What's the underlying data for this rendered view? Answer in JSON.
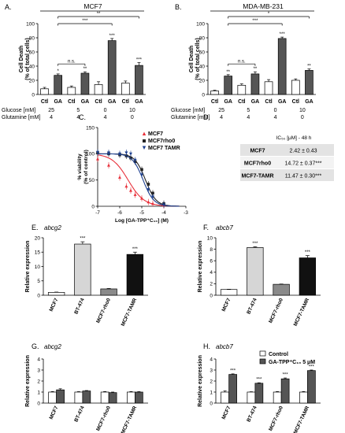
{
  "panel_letters": [
    "A.",
    "B.",
    "C.",
    "D.",
    "E.",
    "F.",
    "G.",
    "H."
  ],
  "chart_data": [
    {
      "panel": "A.",
      "type": "bar",
      "title": "MCF7",
      "ylabel": "Cell Death (% of total cells)",
      "ylim": [
        0,
        100
      ],
      "yticks": [
        0,
        20,
        40,
        60,
        80,
        100
      ],
      "categories": [
        "Ctl",
        "GA",
        "Ctl",
        "GA",
        "Ctl",
        "GA",
        "Ctl",
        "GA"
      ],
      "values": [
        8,
        27,
        10,
        30,
        14,
        76,
        16,
        41
      ],
      "errors": [
        2,
        2,
        2,
        2,
        4,
        3,
        3,
        4
      ],
      "fills": [
        "#ffffff",
        "#555555",
        "#ffffff",
        "#555555",
        "#ffffff",
        "#555555",
        "#ffffff",
        "#555555"
      ],
      "bar_sig": [
        "",
        "*",
        "",
        "**",
        "",
        "***",
        "",
        "***"
      ],
      "conditions_labels": [
        "Glucose [mM]",
        "Glutamine [mM]"
      ],
      "glucose": [
        "25",
        "5",
        "0",
        "10"
      ],
      "glutamine": [
        "4",
        "4",
        "4",
        "0"
      ],
      "brackets": [
        {
          "from": 1,
          "to": 3,
          "label": "n.s."
        },
        {
          "from": 1,
          "to": 5,
          "label": "***"
        },
        {
          "from": 1,
          "to": 7,
          "label": "**"
        }
      ]
    },
    {
      "panel": "B.",
      "type": "bar",
      "title": "MDA-MB-231",
      "ylabel": "Cell Death (% of total cells)",
      "ylim": [
        0,
        100
      ],
      "yticks": [
        0,
        20,
        40,
        60,
        80,
        100
      ],
      "categories": [
        "Ctl",
        "GA",
        "Ctl",
        "GA",
        "Ctl",
        "GA",
        "Ctl",
        "GA"
      ],
      "values": [
        5,
        26,
        13,
        29,
        18,
        79,
        20,
        34
      ],
      "errors": [
        1,
        2,
        2,
        3,
        3,
        2,
        2,
        2
      ],
      "fills": [
        "#ffffff",
        "#555555",
        "#ffffff",
        "#555555",
        "#ffffff",
        "#555555",
        "#ffffff",
        "#555555"
      ],
      "bar_sig": [
        "",
        "**",
        "",
        "**",
        "",
        "***",
        "",
        "**"
      ],
      "conditions_labels": [
        "Glucose [mM]",
        "Glutamine [mM]"
      ],
      "glucose": [
        "25",
        "5",
        "0",
        "10"
      ],
      "glutamine": [
        "4",
        "4",
        "4",
        "0"
      ],
      "brackets": [
        {
          "from": 1,
          "to": 3,
          "label": "n.s."
        },
        {
          "from": 1,
          "to": 5,
          "label": "***"
        },
        {
          "from": 1,
          "to": 7,
          "label": "*"
        }
      ]
    },
    {
      "panel": "C.",
      "type": "line",
      "xlabel": "Log [GA-TPP⁺C₁₀] (M)",
      "ylabel": "% viability (% of control)",
      "xlim": [
        -7,
        -3
      ],
      "ylim": [
        0,
        150
      ],
      "xticks": [
        -7,
        -6,
        -5,
        -4,
        -3
      ],
      "yticks": [
        0,
        50,
        100,
        150
      ],
      "legend_position": "top-right",
      "series": [
        {
          "name": "MCF7",
          "color": "#e8303a",
          "marker": "triangle",
          "logIC50": -5.62,
          "hill": 1.2,
          "x": [
            -7,
            -6.5,
            -6,
            -5.7,
            -5.5,
            -5.3,
            -5,
            -4.7,
            -4.5,
            -4
          ],
          "y": [
            90,
            78,
            55,
            38,
            30,
            22,
            15,
            8,
            5,
            2
          ]
        },
        {
          "name": "MCF7rho0",
          "color": "#222222",
          "marker": "square",
          "logIC50": -4.83,
          "hill": 1.8,
          "x": [
            -7,
            -6.5,
            -6,
            -5.7,
            -5.5,
            -5.3,
            -5,
            -4.7,
            -4.5,
            -4
          ],
          "y": [
            102,
            100,
            98,
            96,
            92,
            85,
            70,
            42,
            25,
            5
          ]
        },
        {
          "name": "MCF7 TAMR",
          "color": "#1c3f8f",
          "marker": "triangle-down",
          "logIC50": -4.94,
          "hill": 1.8,
          "x": [
            -7,
            -6.5,
            -6,
            -5.7,
            -5.5,
            -5.3,
            -5,
            -4.7,
            -4.5,
            -4
          ],
          "y": [
            103,
            102,
            100,
            102,
            100,
            88,
            60,
            32,
            18,
            3
          ]
        }
      ]
    },
    {
      "panel": "D.",
      "type": "table",
      "header": "IC₅₀ [μM] - 48 h",
      "rows": [
        {
          "label": "MCF7",
          "value": "2.42 ± 0.43"
        },
        {
          "label": "MCF7rho0",
          "value": "14.72 ± 0.37***"
        },
        {
          "label": "MCF7-TAMR",
          "value": "11.47 ± 0.30***"
        }
      ]
    },
    {
      "panel": "E.",
      "type": "bar",
      "title": "abcg2",
      "ylabel": "Relative expression",
      "ylim": [
        0,
        20
      ],
      "yticks": [
        0,
        5,
        10,
        15,
        20
      ],
      "categories": [
        "MCF7",
        "BT-474",
        "MCF7-rho0",
        "MCF7-TAMR"
      ],
      "values": [
        1.0,
        17.8,
        2.2,
        14.2
      ],
      "errors": [
        0.1,
        0.8,
        0.15,
        0.8
      ],
      "fills": [
        "#ffffff",
        "#d6d6d6",
        "#8a8a8a",
        "#111111"
      ],
      "bar_sig": [
        "",
        "***",
        "",
        "***"
      ]
    },
    {
      "panel": "F.",
      "type": "bar",
      "title": "abcb7",
      "ylabel": "Relative expression",
      "ylim": [
        0,
        10
      ],
      "yticks": [
        0,
        2,
        4,
        6,
        8,
        10
      ],
      "categories": [
        "MCF7",
        "BT-474",
        "MCF7-rho0",
        "MCF7-TAMR"
      ],
      "values": [
        1.0,
        8.3,
        1.9,
        6.5
      ],
      "errors": [
        0.05,
        0.15,
        0.05,
        0.4
      ],
      "fills": [
        "#ffffff",
        "#d6d6d6",
        "#8a8a8a",
        "#111111"
      ],
      "bar_sig": [
        "",
        "***",
        "",
        "***"
      ]
    },
    {
      "panel": "G.",
      "type": "bar",
      "title": "abcg2",
      "ylabel": "Relative expression",
      "ylim": [
        0,
        4
      ],
      "yticks": [
        0,
        1,
        2,
        3,
        4
      ],
      "categories": [
        "MCF7",
        "BT-474",
        "MCF7-rho0",
        "MCF7-TAMR"
      ],
      "series": [
        {
          "name": "Control",
          "fill": "#ffffff",
          "values": [
            1.0,
            1.0,
            1.0,
            1.0
          ],
          "errors": [
            0.05,
            0.04,
            0.05,
            0.05
          ]
        },
        {
          "name": "GA-TPP⁺C₁₀ 5 μM",
          "fill": "#555555",
          "values": [
            1.2,
            1.1,
            0.95,
            1.0
          ],
          "errors": [
            0.1,
            0.04,
            0.05,
            0.04
          ]
        }
      ],
      "bar_sig": [
        [
          "",
          "",
          "",
          ""
        ],
        [
          "",
          "",
          "",
          ""
        ]
      ]
    },
    {
      "panel": "H.",
      "type": "bar",
      "title": "abcb7",
      "ylabel": "Relative expression",
      "ylim": [
        0,
        4
      ],
      "yticks": [
        0,
        1,
        2,
        3,
        4
      ],
      "categories": [
        "MCF7",
        "BT-474",
        "MCF7-rho0",
        "MCF7-TAMR"
      ],
      "legend_position": "top-right",
      "series": [
        {
          "name": "Control",
          "fill": "#ffffff",
          "values": [
            1.0,
            1.0,
            1.0,
            1.0
          ],
          "errors": [
            0.1,
            0.03,
            0.05,
            0.05
          ]
        },
        {
          "name": "GA-TPP⁺C₁₀ 5 μM",
          "fill": "#555555",
          "values": [
            2.6,
            1.8,
            2.2,
            2.95
          ],
          "errors": [
            0.05,
            0.04,
            0.08,
            0.05
          ]
        }
      ],
      "bar_sig": [
        [
          "",
          "",
          "",
          ""
        ],
        [
          "***",
          "***",
          "***",
          "***"
        ]
      ]
    }
  ]
}
